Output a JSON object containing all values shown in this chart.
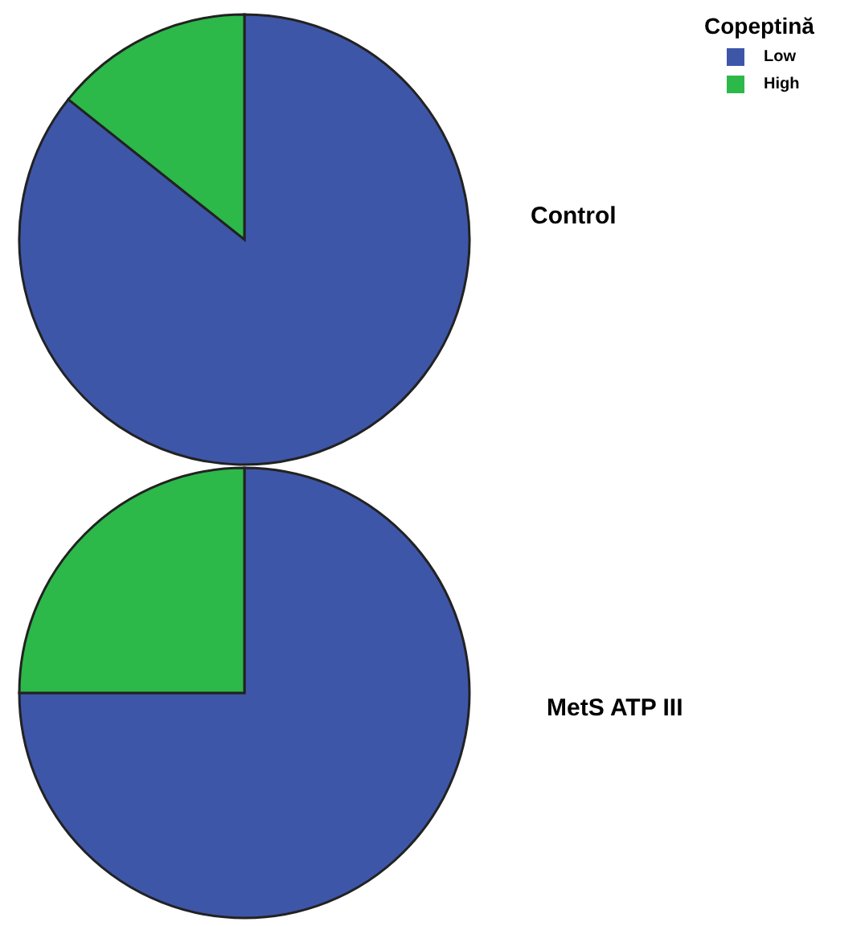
{
  "chart_data": [
    {
      "type": "pie",
      "title": "Control",
      "legend_title": "Copeptină",
      "legend": "top right",
      "categories": [
        "Low",
        "High"
      ],
      "values": [
        85.7,
        14.3
      ],
      "colors": [
        "#3e56a8",
        "#2db84a"
      ]
    },
    {
      "type": "pie",
      "title": "MetS ATP III",
      "legend": false,
      "categories": [
        null,
        null
      ],
      "values": [
        75,
        25
      ],
      "colors": [
        "#3e56a8",
        "#2db84a"
      ]
    }
  ]
}
